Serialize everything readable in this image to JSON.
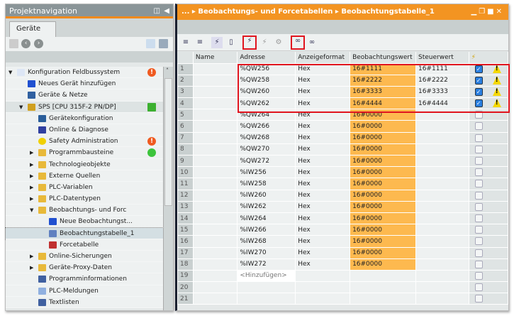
{
  "left": {
    "title": "Projektnavigation",
    "tab": "Geräte",
    "tree": [
      {
        "label": "Konfiguration Feldbussystem",
        "indent": 0,
        "arrow": "down",
        "icon": "document-icon",
        "status": "error"
      },
      {
        "label": "Neues Gerät hinzufügen",
        "indent": 1,
        "icon": "add-device-icon"
      },
      {
        "label": "Geräte & Netze",
        "indent": 1,
        "icon": "network-icon"
      },
      {
        "label": "SPS [CPU 315F-2 PN/DP]",
        "indent": 1,
        "arrow": "down",
        "icon": "plc-icon",
        "status": "ok-fault",
        "hl": true
      },
      {
        "label": "Gerätekonfiguration",
        "indent": 2,
        "icon": "device-config-icon"
      },
      {
        "label": "Online & Diagnose",
        "indent": 2,
        "icon": "diagnostics-icon"
      },
      {
        "label": "Safety Administration",
        "indent": 2,
        "icon": "safety-icon",
        "status": "error"
      },
      {
        "label": "Programmbausteine",
        "indent": 2,
        "arrow": "right",
        "icon": "folder-icon",
        "status": "green"
      },
      {
        "label": "Technologieobjekte",
        "indent": 2,
        "arrow": "right",
        "icon": "folder-icon"
      },
      {
        "label": "Externe Quellen",
        "indent": 2,
        "arrow": "right",
        "icon": "folder-icon"
      },
      {
        "label": "PLC-Variablen",
        "indent": 2,
        "arrow": "right",
        "icon": "folder-icon"
      },
      {
        "label": "PLC-Datentypen",
        "indent": 2,
        "arrow": "right",
        "icon": "folder-icon"
      },
      {
        "label": "Beobachtungs- und Forc",
        "indent": 2,
        "arrow": "down",
        "icon": "folder-icon"
      },
      {
        "label": "Neue Beobachtungst...",
        "indent": 3,
        "icon": "add-table-icon"
      },
      {
        "label": "Beobachtungstabelle_1",
        "indent": 3,
        "icon": "watch-table-icon",
        "selected": true
      },
      {
        "label": "Forcetabelle",
        "indent": 3,
        "icon": "force-table-icon"
      },
      {
        "label": "Online-Sicherungen",
        "indent": 2,
        "arrow": "right",
        "icon": "folder-icon"
      },
      {
        "label": "Geräte-Proxy-Daten",
        "indent": 2,
        "arrow": "right",
        "icon": "folder-icon"
      },
      {
        "label": "Programminformationen",
        "indent": 2,
        "icon": "program-info-icon"
      },
      {
        "label": "PLC-Meldungen",
        "indent": 2,
        "icon": "message-icon"
      },
      {
        "label": "Textlisten",
        "indent": 2,
        "icon": "textlist-icon"
      }
    ]
  },
  "right": {
    "breadcrumb": [
      "...",
      "Beobachtungs- und Forcetabellen",
      "Beobachtungstabelle_1"
    ],
    "columns": [
      "",
      "Name",
      "Adresse",
      "Anzeigeformat",
      "Beobachtungswert",
      "Steuerwert",
      "⚡"
    ],
    "rows": [
      {
        "n": "1",
        "addr": "%QW256",
        "fmt": "Hex",
        "obs": "16#1111",
        "ctrl": "16#1111",
        "chk": true
      },
      {
        "n": "2",
        "addr": "%QW258",
        "fmt": "Hex",
        "obs": "16#2222",
        "ctrl": "16#2222",
        "chk": true
      },
      {
        "n": "3",
        "addr": "%QW260",
        "fmt": "Hex",
        "obs": "16#3333",
        "ctrl": "16#3333",
        "chk": true
      },
      {
        "n": "4",
        "addr": "%QW262",
        "fmt": "Hex",
        "obs": "16#4444",
        "ctrl": "16#4444",
        "chk": true
      },
      {
        "n": "5",
        "addr": "%QW264",
        "fmt": "Hex",
        "obs": "16#0000"
      },
      {
        "n": "6",
        "addr": "%QW266",
        "fmt": "Hex",
        "obs": "16#0000"
      },
      {
        "n": "7",
        "addr": "%QW268",
        "fmt": "Hex",
        "obs": "16#0000"
      },
      {
        "n": "8",
        "addr": "%QW270",
        "fmt": "Hex",
        "obs": "16#0000"
      },
      {
        "n": "9",
        "addr": "%QW272",
        "fmt": "Hex",
        "obs": "16#0000"
      },
      {
        "n": "10",
        "addr": "%IW256",
        "fmt": "Hex",
        "obs": "16#0000"
      },
      {
        "n": "11",
        "addr": "%IW258",
        "fmt": "Hex",
        "obs": "16#0000"
      },
      {
        "n": "12",
        "addr": "%IW260",
        "fmt": "Hex",
        "obs": "16#0000"
      },
      {
        "n": "13",
        "addr": "%IW262",
        "fmt": "Hex",
        "obs": "16#0000"
      },
      {
        "n": "14",
        "addr": "%IW264",
        "fmt": "Hex",
        "obs": "16#0000"
      },
      {
        "n": "15",
        "addr": "%IW266",
        "fmt": "Hex",
        "obs": "16#0000"
      },
      {
        "n": "16",
        "addr": "%IW268",
        "fmt": "Hex",
        "obs": "16#0000"
      },
      {
        "n": "17",
        "addr": "%IW270",
        "fmt": "Hex",
        "obs": "16#0000"
      },
      {
        "n": "18",
        "addr": "%IW272",
        "fmt": "Hex",
        "obs": "16#0000"
      },
      {
        "n": "19",
        "add": "<Hinzufügen>"
      },
      {
        "n": "20"
      },
      {
        "n": "21"
      }
    ]
  },
  "colors": {
    "accent": "#f39422",
    "observe": "#fdb94f",
    "highlight": "#e0141e"
  }
}
